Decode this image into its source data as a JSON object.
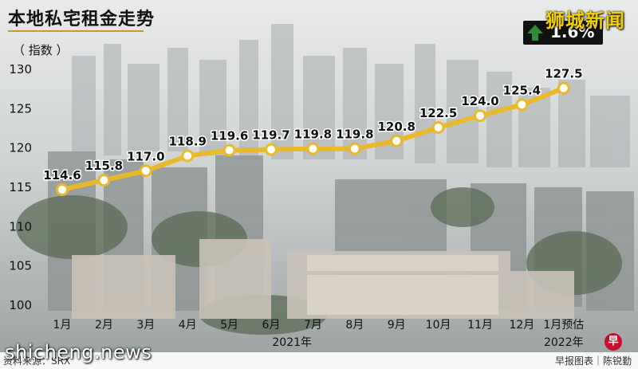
{
  "header": {
    "title": "本地私宅租金走势",
    "unit": "（ 指数 ）"
  },
  "watermark": "狮城新闻",
  "badge": {
    "text": "1.6%"
  },
  "footer": {
    "source": "资料来源：SRX",
    "site": "shicheng.news",
    "credit": "早报图表｜陈锐勤",
    "logo": "早"
  },
  "colors": {
    "line": "#e8b92c",
    "marker": "#ffffff",
    "badge_arrow": "#2e8b3a"
  },
  "chart_data": {
    "type": "line",
    "title": "本地私宅租金走势",
    "ylabel": "指数",
    "ylim": [
      100,
      130
    ],
    "yticks": [
      100,
      105,
      110,
      115,
      120,
      125,
      130
    ],
    "categories": [
      "1月",
      "2月",
      "3月",
      "4月",
      "5月",
      "6月",
      "7月",
      "8月",
      "9月",
      "10月",
      "11月",
      "12月",
      "1月预估"
    ],
    "values": [
      114.6,
      115.8,
      117.0,
      118.9,
      119.6,
      119.7,
      119.8,
      119.8,
      120.8,
      122.5,
      124.0,
      125.4,
      127.5
    ],
    "value_labels": [
      "114.6",
      "115.8",
      "117.0",
      "118.9",
      "119.6",
      "119.7",
      "119.8",
      "119.8",
      "120.8",
      "122.5",
      "124.0",
      "125.4",
      "127.5"
    ],
    "year_groups": [
      {
        "label": "2021年",
        "from": 0,
        "to": 11
      },
      {
        "label": "2022年",
        "from": 12,
        "to": 12
      }
    ],
    "grid": false
  }
}
